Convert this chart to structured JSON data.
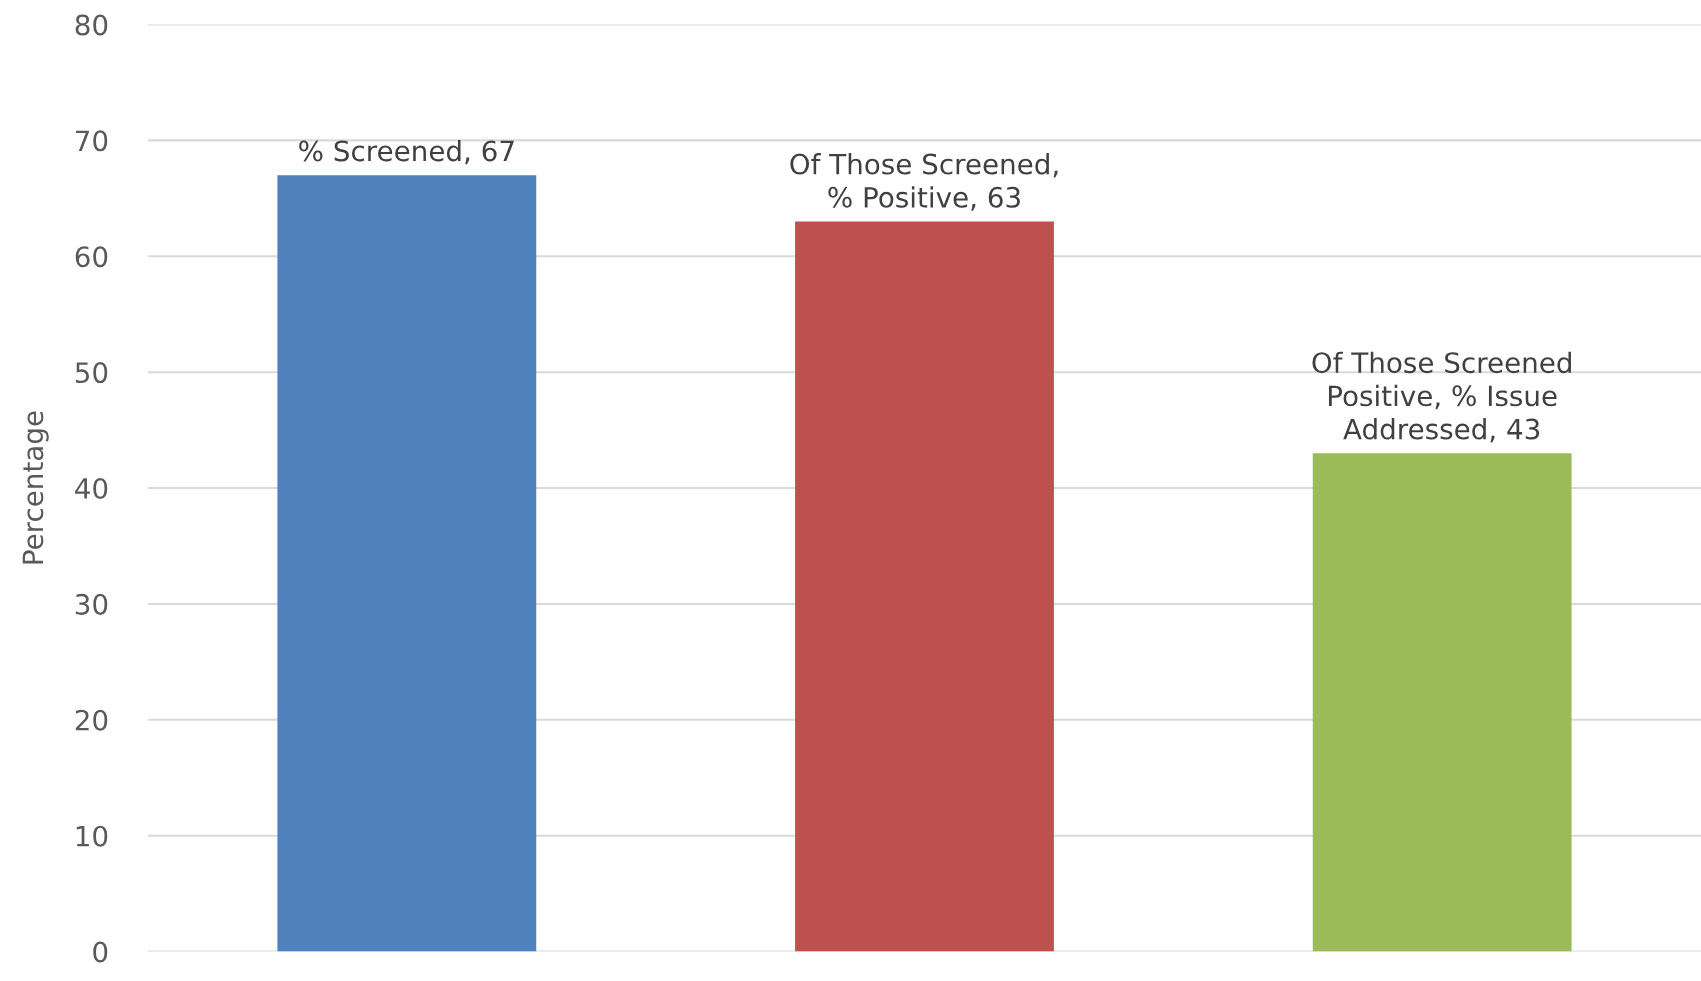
{
  "chart_data": {
    "type": "bar",
    "ylabel": "Percentage",
    "categories": [
      null,
      null,
      null
    ],
    "values": [
      67,
      63,
      43
    ],
    "colors": [
      "#4f81bd",
      "#c0504d",
      "#9bbb59"
    ],
    "value_labels": [
      "% Screened, 67",
      "Of Those Screened,\n% Positive, 63",
      "Of Those Screened\nPositive, % Issue\nAddressed, 43"
    ],
    "ylim": [
      0,
      80
    ],
    "yticks": [
      0,
      10,
      20,
      30,
      40,
      50,
      60,
      70,
      80
    ],
    "grid": "y"
  }
}
